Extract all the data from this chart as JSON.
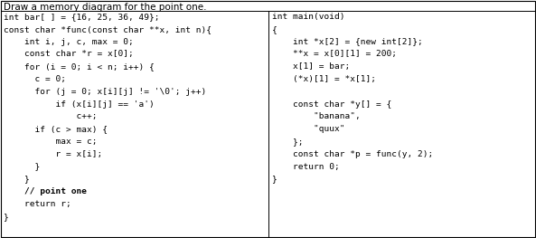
{
  "title": "Draw a memory diagram for the point one.",
  "left_lines": [
    "int bar[ ] = {16, 25, 36, 49};",
    "const char *func(const char **x, int n){",
    "    int i, j, c, max = 0;",
    "    const char *r = x[0];",
    "    for (i = 0; i < n; i++) {",
    "      c = 0;",
    "      for (j = 0; x[i][j] != '\\0'; j++)",
    "          if (x[i][j] == 'a')",
    "              c++;",
    "      if (c > max) {",
    "          max = c;",
    "          r = x[i];",
    "      }",
    "    }",
    "    // point one",
    "    return r;",
    "}"
  ],
  "right_lines": [
    "int main(void)",
    "{",
    "    int *x[2] = {new int[2]};",
    "    **x = x[0][1] = 200;",
    "    x[1] = bar;",
    "    (*x)[1] = *x[1];",
    "",
    "    const char *y[] = {",
    "        \"banana\",",
    "        \"quux\"",
    "    };",
    "    const char *p = func(y, 2);",
    "    return 0;",
    "}"
  ],
  "bold_line_index": 14,
  "bg_color": "#ffffff",
  "border_color": "#000000",
  "title_font_size": 7.5,
  "code_font_size": 6.8
}
